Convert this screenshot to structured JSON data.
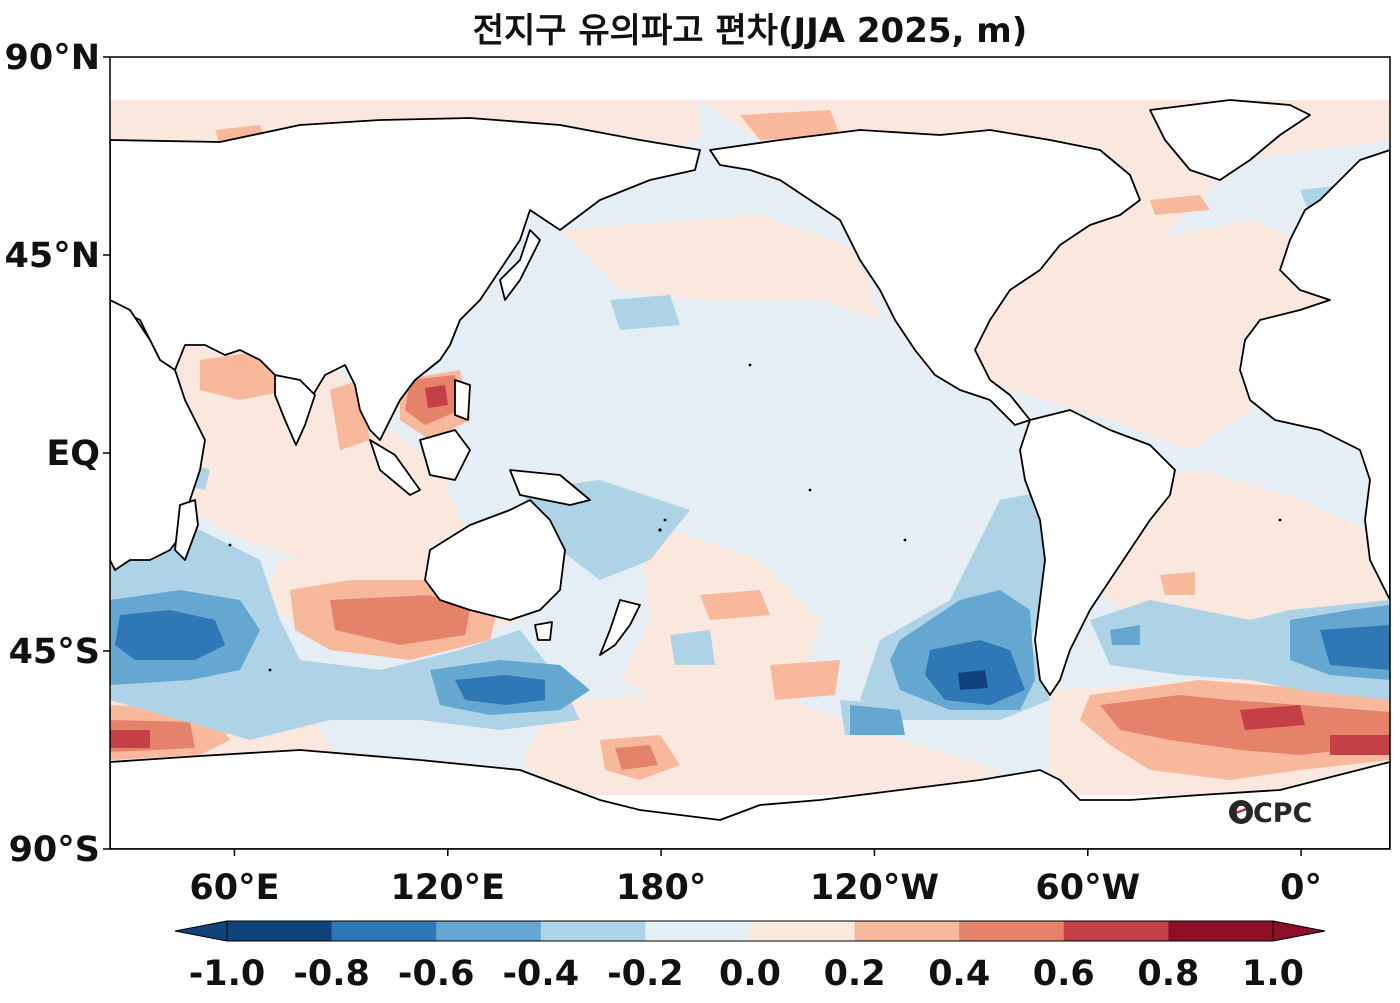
{
  "figure": {
    "title": "전지구 유의파고 편차(JJA 2025, m)",
    "logo_text": "OCPC"
  },
  "axes": {
    "lat_labels": [
      {
        "lat": 90,
        "text": "90°N"
      },
      {
        "lat": 45,
        "text": "45°N"
      },
      {
        "lat": 0,
        "text": "EQ"
      },
      {
        "lat": -45,
        "text": "45°S"
      },
      {
        "lat": -90,
        "text": "90°S"
      }
    ],
    "lon_labels": [
      {
        "lon": 60,
        "text": "60°E"
      },
      {
        "lon": 120,
        "text": "120°E"
      },
      {
        "lon": 180,
        "text": "180°"
      },
      {
        "lon": 240,
        "text": "120°W"
      },
      {
        "lon": 300,
        "text": "60°W"
      },
      {
        "lon": 360,
        "text": "0°"
      }
    ],
    "lon_range": [
      25,
      385
    ],
    "lat_range": [
      -90,
      90
    ]
  },
  "colorbar": {
    "levels": [
      -1.0,
      -0.8,
      -0.6,
      -0.4,
      -0.2,
      0.0,
      0.2,
      0.4,
      0.6,
      0.8,
      1.0
    ],
    "labels": [
      "-1.0",
      "-0.8",
      "-0.6",
      "-0.4",
      "-0.2",
      "0.0",
      "0.2",
      "0.4",
      "0.6",
      "0.8",
      "1.0"
    ],
    "colors": [
      "#10427c",
      "#2f78b6",
      "#65a7d1",
      "#aed2e6",
      "#e5eef5",
      "#fae7dd",
      "#f7b89b",
      "#e5826a",
      "#c54046",
      "#8d1028"
    ],
    "extend": "both"
  },
  "colors": {
    "land": "#ffffff",
    "coast": "#000000",
    "ocean_base": "#e5eef5"
  }
}
